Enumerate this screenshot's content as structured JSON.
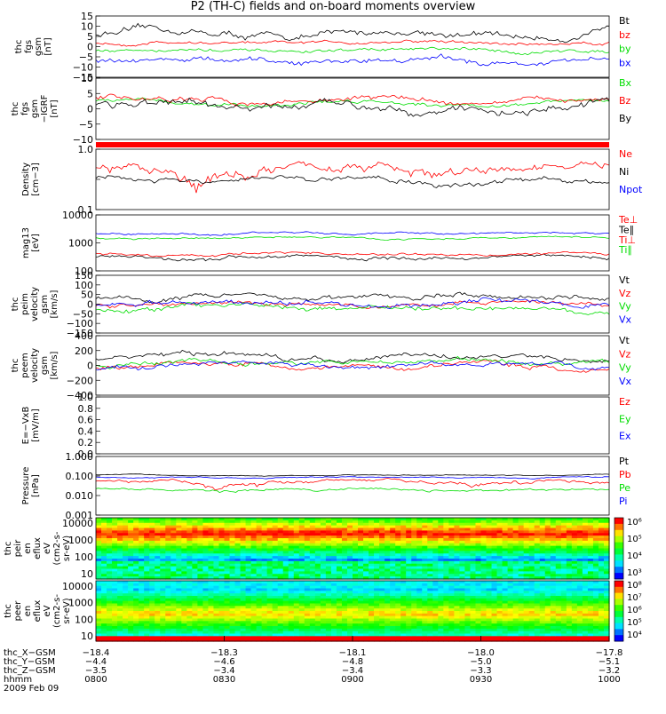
{
  "title": "P2 (TH-C) fields and on-board moments overview",
  "colors": {
    "black": "#000000",
    "red": "#ff0000",
    "green": "#00dd00",
    "blue": "#0000ff"
  },
  "chart_data": [
    {
      "type": "line",
      "ylabel": [
        "thc",
        "fgs",
        "gsm",
        "[nT]"
      ],
      "ylim": [
        -15,
        15
      ],
      "yticks": [
        "15",
        "10",
        "5",
        "0",
        "−5",
        "−10",
        "−15"
      ],
      "series": [
        {
          "name": "Bt",
          "color": "black",
          "level": 6,
          "amp": 3
        },
        {
          "name": "bz",
          "color": "red",
          "level": 2,
          "amp": 1.5
        },
        {
          "name": "by",
          "color": "green",
          "level": -2,
          "amp": 1.5
        },
        {
          "name": "bx",
          "color": "blue",
          "level": -7,
          "amp": 2.5
        }
      ]
    },
    {
      "type": "line",
      "ylabel": [
        "thc",
        "fgs",
        "gsm",
        "−IGRF",
        "[nT]"
      ],
      "ylim": [
        -15,
        10
      ],
      "yticks": [
        "10",
        "5",
        "0",
        "−5",
        "−10"
      ],
      "series": [
        {
          "name": "Bx",
          "color": "green",
          "level": 0,
          "amp": 1.5
        },
        {
          "name": "Bz",
          "color": "red",
          "level": 1,
          "amp": 2
        },
        {
          "name": "By",
          "color": "black",
          "level": -2,
          "amp": 3
        }
      ]
    },
    {
      "type": "line",
      "ylabel": [
        "Density",
        "[cm−3]"
      ],
      "ylim": [
        0.1,
        1.0
      ],
      "log": true,
      "yticks": [
        "1.0",
        "",
        "0.1"
      ],
      "series": [
        {
          "name": "Ne",
          "color": "red",
          "level": 0.45,
          "amp": 0.15
        },
        {
          "name": "Ni",
          "color": "black",
          "level": 0.3,
          "amp": 0.06
        },
        {
          "name": "Npot",
          "color": "blue",
          "level": null,
          "amp": 0
        }
      ]
    },
    {
      "type": "line",
      "ylabel": [
        "mag13",
        "[eV]"
      ],
      "ylim": [
        100,
        10000
      ],
      "log": true,
      "yticks": [
        "10000",
        "1000",
        "100"
      ],
      "series": [
        {
          "name": "Te⊥",
          "color": "red",
          "level": 0,
          "amp": 0
        },
        {
          "name": "Te∥",
          "color": "black",
          "level": 300,
          "amp": 80
        },
        {
          "name": "Ti⊥",
          "color": "red",
          "level": 400,
          "amp": 80
        },
        {
          "name": "Ti∥",
          "color": "green",
          "level": 1500,
          "amp": 200
        },
        {
          "name": "",
          "color": "blue",
          "level": 2200,
          "amp": 300
        }
      ]
    },
    {
      "type": "line",
      "ylabel": [
        "thc",
        "peim",
        "velocity",
        "gsm",
        "[km/s]"
      ],
      "ylim": [
        -150,
        150
      ],
      "yticks": [
        "150",
        "100",
        "50",
        "0",
        "−50",
        "−100",
        "−150"
      ],
      "series": [
        {
          "name": "Vt",
          "color": "black",
          "level": 40,
          "amp": 25
        },
        {
          "name": "Vz",
          "color": "red",
          "level": 0,
          "amp": 20
        },
        {
          "name": "Vy",
          "color": "green",
          "level": -15,
          "amp": 25
        },
        {
          "name": "Vx",
          "color": "blue",
          "level": 5,
          "amp": 25
        }
      ]
    },
    {
      "type": "line",
      "ylabel": [
        "thc",
        "peem",
        "velocity",
        "gsm",
        "[km/s]"
      ],
      "ylim": [
        -400,
        400
      ],
      "yticks": [
        "400",
        "200",
        "0",
        "−200",
        "−400"
      ],
      "series": [
        {
          "name": "Vt",
          "color": "black",
          "level": 100,
          "amp": 60
        },
        {
          "name": "Vz",
          "color": "red",
          "level": 0,
          "amp": 60
        },
        {
          "name": "Vy",
          "color": "green",
          "level": 40,
          "amp": 60
        },
        {
          "name": "Vx",
          "color": "blue",
          "level": 0,
          "amp": 60
        }
      ]
    },
    {
      "type": "line",
      "ylabel": [
        "E=−VxB",
        "[mV/m]"
      ],
      "ylim": [
        0,
        1.0
      ],
      "yticks": [
        "1.0",
        "0.8",
        "0.6",
        "0.4",
        "0.2",
        "0.0"
      ],
      "series": [
        {
          "name": "Ez",
          "color": "red",
          "level": null,
          "amp": 0
        },
        {
          "name": "Ey",
          "color": "green",
          "level": null,
          "amp": 0
        },
        {
          "name": "Ex",
          "color": "blue",
          "level": null,
          "amp": 0
        }
      ]
    },
    {
      "type": "line",
      "ylabel": [
        "Pressure",
        "[nPa]"
      ],
      "ylim": [
        0.001,
        1.0
      ],
      "log": true,
      "yticks": [
        "1.000",
        "0.100",
        "0.010",
        "0.001"
      ],
      "series": [
        {
          "name": "Pt",
          "color": "black",
          "level": 0.11,
          "amp": 0.01
        },
        {
          "name": "Pb",
          "color": "red",
          "level": 0.05,
          "amp": 0.02
        },
        {
          "name": "Pe",
          "color": "green",
          "level": 0.02,
          "amp": 0.005
        },
        {
          "name": "Pi",
          "color": "blue",
          "level": 0.085,
          "amp": 0.01
        }
      ]
    },
    {
      "type": "heatmap",
      "ylabel": [
        "thc",
        "peir",
        "en",
        "eflux",
        "eV",
        "(cm2-s-",
        "sr-eV)"
      ],
      "ylim": [
        10,
        10000
      ],
      "log": true,
      "yticks": [
        "10000",
        "1000",
        "100",
        "10"
      ],
      "colorbar": [
        "10⁶",
        "10⁵",
        "10⁴",
        "10³"
      ]
    },
    {
      "type": "heatmap",
      "ylabel": [
        "thc",
        "peer",
        "en",
        "eflux",
        "eV",
        "(cm2-s-",
        "sr-eV)"
      ],
      "ylim": [
        10,
        10000
      ],
      "log": true,
      "yticks": [
        "10000",
        "1000",
        "100",
        "10"
      ],
      "colorbar": [
        "10⁸",
        "10⁷",
        "10⁶",
        "10⁵",
        "10⁴"
      ]
    }
  ],
  "xaxis": {
    "rows": [
      {
        "label": "thc_X−GSM",
        "values": [
          "−18.4",
          "−18.3",
          "−18.1",
          "−18.0",
          "−17.8"
        ]
      },
      {
        "label": "thc_Y−GSM",
        "values": [
          "−4.4",
          "−4.6",
          "−4.8",
          "−5.0",
          "−5.1"
        ]
      },
      {
        "label": "thc_Z−GSM",
        "values": [
          "−3.5",
          "−3.4",
          "−3.4",
          "−3.3",
          "−3.2"
        ]
      },
      {
        "label": "hhmm",
        "values": [
          "0800",
          "0830",
          "0900",
          "0930",
          "1000"
        ]
      }
    ],
    "date": "2009 Feb 09"
  }
}
